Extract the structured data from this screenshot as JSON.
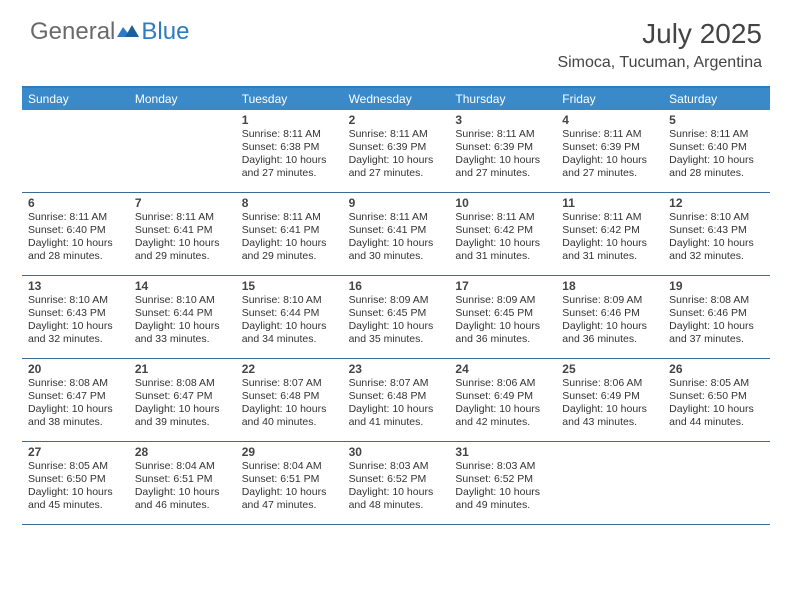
{
  "logo": {
    "text1": "General",
    "text2": "Blue"
  },
  "title": "July 2025",
  "location": "Simoca, Tucuman, Argentina",
  "colors": {
    "header_bar": "#3a8ac9",
    "header_border": "#2e7cc0",
    "week_divider": "#3a6a95",
    "text": "#333333",
    "title_text": "#444444"
  },
  "daynames": [
    "Sunday",
    "Monday",
    "Tuesday",
    "Wednesday",
    "Thursday",
    "Friday",
    "Saturday"
  ],
  "weeks": [
    [
      {
        "day": "",
        "sunrise": "",
        "sunset": "",
        "daylight": ""
      },
      {
        "day": "",
        "sunrise": "",
        "sunset": "",
        "daylight": ""
      },
      {
        "day": "1",
        "sunrise": "8:11 AM",
        "sunset": "6:38 PM",
        "daylight": "10 hours and 27 minutes."
      },
      {
        "day": "2",
        "sunrise": "8:11 AM",
        "sunset": "6:39 PM",
        "daylight": "10 hours and 27 minutes."
      },
      {
        "day": "3",
        "sunrise": "8:11 AM",
        "sunset": "6:39 PM",
        "daylight": "10 hours and 27 minutes."
      },
      {
        "day": "4",
        "sunrise": "8:11 AM",
        "sunset": "6:39 PM",
        "daylight": "10 hours and 27 minutes."
      },
      {
        "day": "5",
        "sunrise": "8:11 AM",
        "sunset": "6:40 PM",
        "daylight": "10 hours and 28 minutes."
      }
    ],
    [
      {
        "day": "6",
        "sunrise": "8:11 AM",
        "sunset": "6:40 PM",
        "daylight": "10 hours and 28 minutes."
      },
      {
        "day": "7",
        "sunrise": "8:11 AM",
        "sunset": "6:41 PM",
        "daylight": "10 hours and 29 minutes."
      },
      {
        "day": "8",
        "sunrise": "8:11 AM",
        "sunset": "6:41 PM",
        "daylight": "10 hours and 29 minutes."
      },
      {
        "day": "9",
        "sunrise": "8:11 AM",
        "sunset": "6:41 PM",
        "daylight": "10 hours and 30 minutes."
      },
      {
        "day": "10",
        "sunrise": "8:11 AM",
        "sunset": "6:42 PM",
        "daylight": "10 hours and 31 minutes."
      },
      {
        "day": "11",
        "sunrise": "8:11 AM",
        "sunset": "6:42 PM",
        "daylight": "10 hours and 31 minutes."
      },
      {
        "day": "12",
        "sunrise": "8:10 AM",
        "sunset": "6:43 PM",
        "daylight": "10 hours and 32 minutes."
      }
    ],
    [
      {
        "day": "13",
        "sunrise": "8:10 AM",
        "sunset": "6:43 PM",
        "daylight": "10 hours and 32 minutes."
      },
      {
        "day": "14",
        "sunrise": "8:10 AM",
        "sunset": "6:44 PM",
        "daylight": "10 hours and 33 minutes."
      },
      {
        "day": "15",
        "sunrise": "8:10 AM",
        "sunset": "6:44 PM",
        "daylight": "10 hours and 34 minutes."
      },
      {
        "day": "16",
        "sunrise": "8:09 AM",
        "sunset": "6:45 PM",
        "daylight": "10 hours and 35 minutes."
      },
      {
        "day": "17",
        "sunrise": "8:09 AM",
        "sunset": "6:45 PM",
        "daylight": "10 hours and 36 minutes."
      },
      {
        "day": "18",
        "sunrise": "8:09 AM",
        "sunset": "6:46 PM",
        "daylight": "10 hours and 36 minutes."
      },
      {
        "day": "19",
        "sunrise": "8:08 AM",
        "sunset": "6:46 PM",
        "daylight": "10 hours and 37 minutes."
      }
    ],
    [
      {
        "day": "20",
        "sunrise": "8:08 AM",
        "sunset": "6:47 PM",
        "daylight": "10 hours and 38 minutes."
      },
      {
        "day": "21",
        "sunrise": "8:08 AM",
        "sunset": "6:47 PM",
        "daylight": "10 hours and 39 minutes."
      },
      {
        "day": "22",
        "sunrise": "8:07 AM",
        "sunset": "6:48 PM",
        "daylight": "10 hours and 40 minutes."
      },
      {
        "day": "23",
        "sunrise": "8:07 AM",
        "sunset": "6:48 PM",
        "daylight": "10 hours and 41 minutes."
      },
      {
        "day": "24",
        "sunrise": "8:06 AM",
        "sunset": "6:49 PM",
        "daylight": "10 hours and 42 minutes."
      },
      {
        "day": "25",
        "sunrise": "8:06 AM",
        "sunset": "6:49 PM",
        "daylight": "10 hours and 43 minutes."
      },
      {
        "day": "26",
        "sunrise": "8:05 AM",
        "sunset": "6:50 PM",
        "daylight": "10 hours and 44 minutes."
      }
    ],
    [
      {
        "day": "27",
        "sunrise": "8:05 AM",
        "sunset": "6:50 PM",
        "daylight": "10 hours and 45 minutes."
      },
      {
        "day": "28",
        "sunrise": "8:04 AM",
        "sunset": "6:51 PM",
        "daylight": "10 hours and 46 minutes."
      },
      {
        "day": "29",
        "sunrise": "8:04 AM",
        "sunset": "6:51 PM",
        "daylight": "10 hours and 47 minutes."
      },
      {
        "day": "30",
        "sunrise": "8:03 AM",
        "sunset": "6:52 PM",
        "daylight": "10 hours and 48 minutes."
      },
      {
        "day": "31",
        "sunrise": "8:03 AM",
        "sunset": "6:52 PM",
        "daylight": "10 hours and 49 minutes."
      },
      {
        "day": "",
        "sunrise": "",
        "sunset": "",
        "daylight": ""
      },
      {
        "day": "",
        "sunrise": "",
        "sunset": "",
        "daylight": ""
      }
    ]
  ]
}
